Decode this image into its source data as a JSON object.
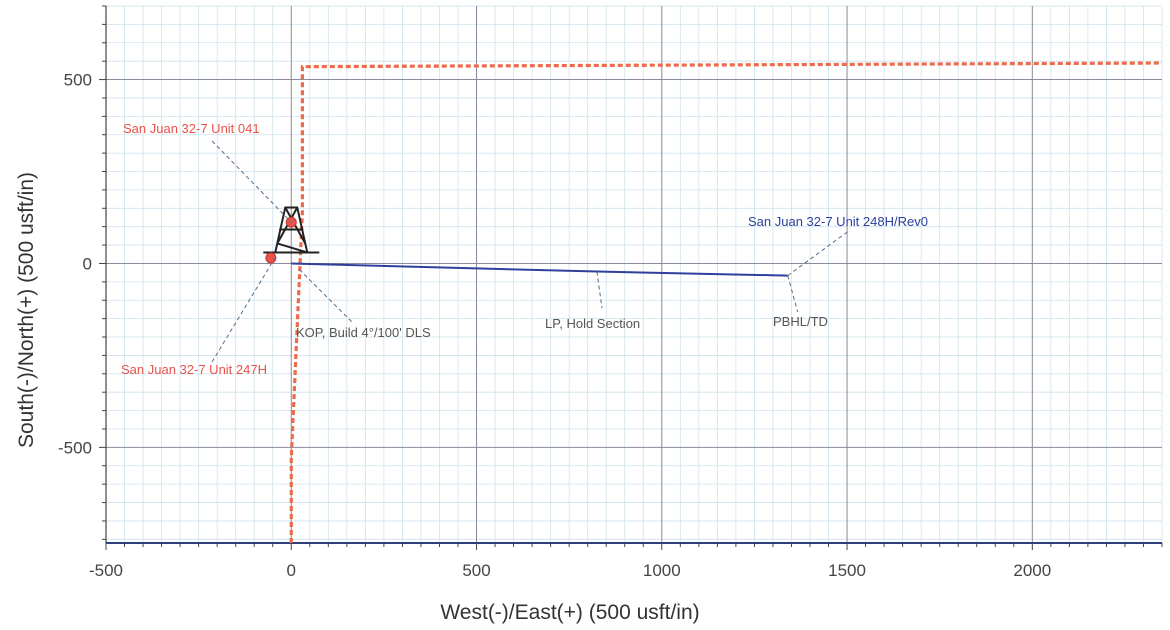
{
  "chart_data": {
    "type": "line",
    "xlabel": "West(-)/East(+) (500 usft/in)",
    "ylabel": "South(-)/North(+) (500 usft/in)",
    "xlim": [
      -500,
      2350
    ],
    "ylim": [
      -760,
      700
    ],
    "x_ticks": [
      -500,
      0,
      500,
      1000,
      1500,
      2000
    ],
    "y_ticks": [
      -500,
      0,
      500
    ],
    "x_tick_labels": [
      "-500",
      "0",
      "500",
      "1000",
      "1500",
      "2000"
    ],
    "y_tick_labels": [
      "-500",
      "0",
      "500"
    ],
    "grid": true,
    "minor_grid": true,
    "colors": {
      "wellpath": "#2e3f9c",
      "boundary": "#ee6a4c",
      "label_red": "#e8524a",
      "label_blue": "#2b3f9c",
      "grid_major": "#8a8a9a",
      "grid_minor": "#cfe2ec",
      "tick_text": "#444444"
    },
    "series": [
      {
        "name": "San Juan 32-7 Unit 248H/Rev0",
        "style": "solid",
        "x": [
          0,
          825,
          1340
        ],
        "y": [
          0,
          -22,
          -33
        ]
      }
    ],
    "boundary": {
      "style": "dashed",
      "x": [
        0,
        0,
        30,
        30,
        2350
      ],
      "y": [
        -760,
        -530,
        140,
        535,
        545
      ]
    },
    "offset_wells": [
      {
        "name": "San Juan 32-7 Unit 041",
        "x": 0,
        "y": 112
      },
      {
        "name": "San Juan 32-7 Unit 247H",
        "x": -55,
        "y": 15
      }
    ],
    "rig_icon": "drilling-rig-icon",
    "annotations": [
      {
        "text": "San Juan 32-7 Unit 041",
        "color": "red"
      },
      {
        "text": "San Juan 32-7 Unit 247H",
        "color": "red"
      },
      {
        "text": "San Juan 32-7 Unit 248H/Rev0",
        "color": "blue"
      },
      {
        "text": "KOP, Build 4°/100' DLS",
        "color": "gray"
      },
      {
        "text": "LP, Hold Section",
        "color": "gray"
      },
      {
        "text": "PBHL/TD",
        "color": "gray"
      }
    ]
  }
}
